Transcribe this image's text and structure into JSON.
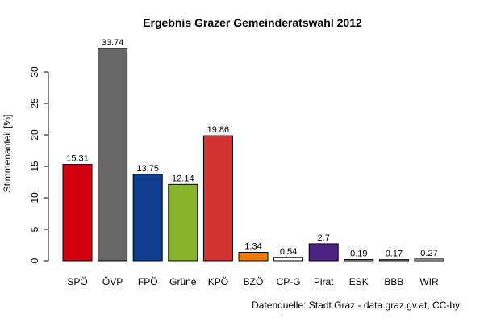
{
  "chart_data": {
    "type": "bar",
    "title": "Ergebnis Grazer Gemeinderatswahl 2012",
    "ylabel": "Stimmenanteil [%]",
    "xlabel": "",
    "ylim": [
      0,
      34
    ],
    "yticks": [
      0,
      5,
      10,
      15,
      20,
      25,
      30
    ],
    "categories": [
      "SPÖ",
      "ÖVP",
      "FPÖ",
      "Grüne",
      "KPÖ",
      "BZÖ",
      "CP-G",
      "Pirat",
      "ESK",
      "BBB",
      "WIR"
    ],
    "values": [
      15.31,
      33.74,
      13.75,
      12.14,
      19.86,
      1.34,
      0.54,
      2.7,
      0.19,
      0.17,
      0.27
    ],
    "value_labels": [
      "15.31",
      "33.74",
      "13.75",
      "12.14",
      "19.86",
      "1.34",
      "0.54",
      "2.7",
      "0.19",
      "0.17",
      "0.27"
    ],
    "colors": [
      "#d3000f",
      "#666666",
      "#0f3e8e",
      "#86b52c",
      "#d23232",
      "#ef7c00",
      "#ffffff",
      "#4b2283",
      "#e6e6e6",
      "#e6e6e6",
      "#e6e6e6"
    ],
    "source": "Datenquelle: Stadt Graz - data.graz.gv.at, CC-by",
    "grid": false,
    "legend": "none"
  }
}
